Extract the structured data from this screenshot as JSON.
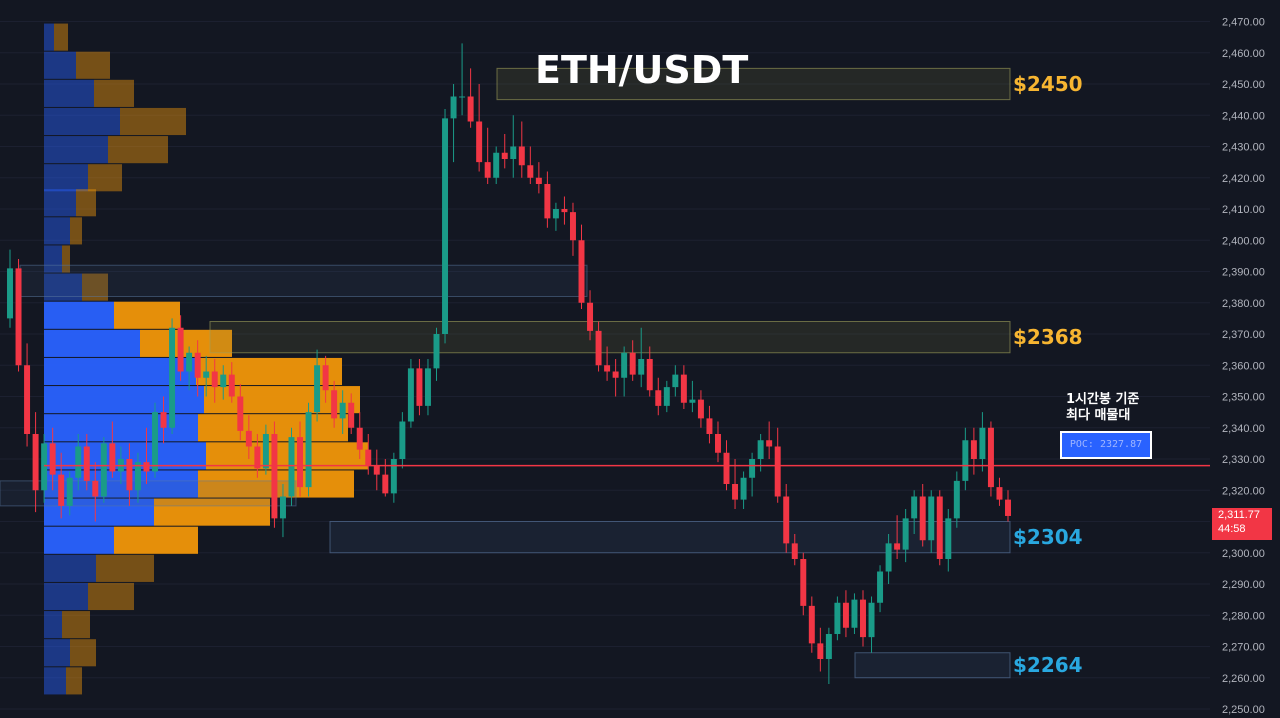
{
  "chart_data": {
    "type": "candlestick",
    "title": "ETH/USDT",
    "ylim": [
      2248,
      2472
    ],
    "y_ticks": [
      "2,250.00",
      "2,260.00",
      "2,270.00",
      "2,280.00",
      "2,290.00",
      "2,300.00",
      "2,310.00",
      "2,320.00",
      "2,330.00",
      "2,340.00",
      "2,350.00",
      "2,360.00",
      "2,370.00",
      "2,380.00",
      "2,390.00",
      "2,400.00",
      "2,410.00",
      "2,420.00",
      "2,430.00",
      "2,440.00",
      "2,450.00",
      "2,460.00",
      "2,470.00"
    ],
    "current_price": "2,311.77",
    "countdown": "44:58",
    "poc_price": 2327.87,
    "poc_label": "POC: 2327.87",
    "poc_note": [
      "1시간봉 기준",
      "최다 매물대"
    ],
    "zones": [
      {
        "label": "$2450",
        "low": 2445,
        "high": 2455,
        "color": "#f7b531"
      },
      {
        "label": "$2368",
        "low": 2364,
        "high": 2374,
        "color": "#f7b531"
      },
      {
        "label": "$2304",
        "low": 2300,
        "high": 2310,
        "color": "#29a8e0"
      },
      {
        "label": "$2264",
        "low": 2260,
        "high": 2268,
        "color": "#29a8e0"
      }
    ],
    "volume_profile": [
      {
        "price": 2465,
        "buy": 10,
        "sell": 14
      },
      {
        "price": 2456,
        "buy": 32,
        "sell": 34
      },
      {
        "price": 2447,
        "buy": 50,
        "sell": 40
      },
      {
        "price": 2438,
        "buy": 76,
        "sell": 66
      },
      {
        "price": 2429,
        "buy": 64,
        "sell": 60
      },
      {
        "price": 2420,
        "buy": 44,
        "sell": 34
      },
      {
        "price": 2412,
        "buy": 32,
        "sell": 20
      },
      {
        "price": 2403,
        "buy": 26,
        "sell": 12
      },
      {
        "price": 2394,
        "buy": 18,
        "sell": 8
      },
      {
        "price": 2385,
        "buy": 38,
        "sell": 26
      },
      {
        "price": 2376,
        "buy": 70,
        "sell": 66
      },
      {
        "price": 2367,
        "buy": 96,
        "sell": 92
      },
      {
        "price": 2358,
        "buy": 152,
        "sell": 146
      },
      {
        "price": 2349,
        "buy": 160,
        "sell": 156
      },
      {
        "price": 2340,
        "buy": 154,
        "sell": 150
      },
      {
        "price": 2331,
        "buy": 162,
        "sell": 162
      },
      {
        "price": 2322,
        "buy": 154,
        "sell": 156
      },
      {
        "price": 2313,
        "buy": 110,
        "sell": 116
      },
      {
        "price": 2304,
        "buy": 70,
        "sell": 84
      },
      {
        "price": 2295,
        "buy": 52,
        "sell": 58
      },
      {
        "price": 2286,
        "buy": 44,
        "sell": 46
      },
      {
        "price": 2277,
        "buy": 18,
        "sell": 28
      },
      {
        "price": 2268,
        "buy": 26,
        "sell": 26
      },
      {
        "price": 2259,
        "buy": 22,
        "sell": 16
      }
    ],
    "candles": [
      [
        2375,
        2397,
        2372,
        2391
      ],
      [
        2391,
        2394,
        2358,
        2360
      ],
      [
        2360,
        2367,
        2334,
        2338
      ],
      [
        2338,
        2345,
        2313,
        2320
      ],
      [
        2320,
        2338,
        2316,
        2335
      ],
      [
        2335,
        2340,
        2320,
        2325
      ],
      [
        2325,
        2332,
        2311,
        2315
      ],
      [
        2315,
        2326,
        2312,
        2324
      ],
      [
        2324,
        2338,
        2320,
        2334
      ],
      [
        2334,
        2338,
        2320,
        2323
      ],
      [
        2323,
        2329,
        2310,
        2318
      ],
      [
        2318,
        2337,
        2316,
        2335
      ],
      [
        2335,
        2342,
        2324,
        2326
      ],
      [
        2326,
        2334,
        2322,
        2330
      ],
      [
        2330,
        2335,
        2315,
        2320
      ],
      [
        2320,
        2332,
        2316,
        2329
      ],
      [
        2329,
        2340,
        2322,
        2326
      ],
      [
        2326,
        2348,
        2324,
        2345
      ],
      [
        2345,
        2350,
        2335,
        2340
      ],
      [
        2340,
        2375,
        2338,
        2372
      ],
      [
        2372,
        2376,
        2355,
        2358
      ],
      [
        2358,
        2366,
        2352,
        2364
      ],
      [
        2364,
        2368,
        2350,
        2356
      ],
      [
        2356,
        2363,
        2350,
        2358
      ],
      [
        2358,
        2362,
        2348,
        2353
      ],
      [
        2353,
        2360,
        2349,
        2357
      ],
      [
        2357,
        2361,
        2348,
        2350
      ],
      [
        2350,
        2354,
        2336,
        2339
      ],
      [
        2339,
        2344,
        2330,
        2334
      ],
      [
        2334,
        2338,
        2324,
        2327
      ],
      [
        2327,
        2341,
        2325,
        2338
      ],
      [
        2338,
        2342,
        2308,
        2311
      ],
      [
        2311,
        2322,
        2305,
        2318
      ],
      [
        2318,
        2340,
        2315,
        2337
      ],
      [
        2337,
        2342,
        2318,
        2321
      ],
      [
        2321,
        2348,
        2318,
        2345
      ],
      [
        2345,
        2365,
        2342,
        2360
      ],
      [
        2360,
        2363,
        2348,
        2352
      ],
      [
        2352,
        2355,
        2340,
        2343
      ],
      [
        2343,
        2352,
        2338,
        2348
      ],
      [
        2348,
        2351,
        2338,
        2340
      ],
      [
        2340,
        2345,
        2330,
        2333
      ],
      [
        2333,
        2338,
        2325,
        2328
      ],
      [
        2328,
        2333,
        2320,
        2325
      ],
      [
        2325,
        2330,
        2318,
        2319
      ],
      [
        2319,
        2332,
        2316,
        2330
      ],
      [
        2330,
        2345,
        2327,
        2342
      ],
      [
        2342,
        2362,
        2340,
        2359
      ],
      [
        2359,
        2362,
        2344,
        2347
      ],
      [
        2347,
        2362,
        2344,
        2359
      ],
      [
        2359,
        2372,
        2355,
        2370
      ],
      [
        2370,
        2442,
        2367,
        2439
      ],
      [
        2439,
        2450,
        2425,
        2446
      ],
      [
        2446,
        2463,
        2440,
        2446
      ],
      [
        2446,
        2455,
        2436,
        2438
      ],
      [
        2438,
        2450,
        2422,
        2425
      ],
      [
        2425,
        2436,
        2418,
        2420
      ],
      [
        2420,
        2430,
        2418,
        2428
      ],
      [
        2428,
        2434,
        2423,
        2426
      ],
      [
        2426,
        2440,
        2420,
        2430
      ],
      [
        2430,
        2438,
        2420,
        2424
      ],
      [
        2424,
        2430,
        2418,
        2420
      ],
      [
        2420,
        2425,
        2415,
        2418
      ],
      [
        2418,
        2422,
        2404,
        2407
      ],
      [
        2407,
        2412,
        2403,
        2410
      ],
      [
        2410,
        2414,
        2405,
        2409
      ],
      [
        2409,
        2412,
        2395,
        2400
      ],
      [
        2400,
        2405,
        2378,
        2380
      ],
      [
        2380,
        2384,
        2368,
        2371
      ],
      [
        2371,
        2374,
        2358,
        2360
      ],
      [
        2360,
        2366,
        2355,
        2358
      ],
      [
        2358,
        2362,
        2350,
        2356
      ],
      [
        2356,
        2366,
        2350,
        2364
      ],
      [
        2364,
        2368,
        2355,
        2357
      ],
      [
        2357,
        2372,
        2353,
        2362
      ],
      [
        2362,
        2366,
        2350,
        2352
      ],
      [
        2352,
        2356,
        2344,
        2347
      ],
      [
        2347,
        2355,
        2345,
        2353
      ],
      [
        2353,
        2360,
        2350,
        2357
      ],
      [
        2357,
        2360,
        2346,
        2348
      ],
      [
        2348,
        2355,
        2345,
        2349
      ],
      [
        2349,
        2352,
        2340,
        2343
      ],
      [
        2343,
        2347,
        2335,
        2338
      ],
      [
        2338,
        2342,
        2329,
        2332
      ],
      [
        2332,
        2336,
        2320,
        2322
      ],
      [
        2322,
        2330,
        2314,
        2317
      ],
      [
        2317,
        2326,
        2314,
        2324
      ],
      [
        2324,
        2332,
        2318,
        2330
      ],
      [
        2330,
        2338,
        2326,
        2336
      ],
      [
        2336,
        2342,
        2330,
        2334
      ],
      [
        2334,
        2340,
        2316,
        2318
      ],
      [
        2318,
        2322,
        2300,
        2303
      ],
      [
        2303,
        2306,
        2296,
        2298
      ],
      [
        2298,
        2300,
        2280,
        2283
      ],
      [
        2283,
        2286,
        2268,
        2271
      ],
      [
        2271,
        2276,
        2262,
        2266
      ],
      [
        2266,
        2276,
        2258,
        2274
      ],
      [
        2274,
        2286,
        2272,
        2284
      ],
      [
        2284,
        2288,
        2273,
        2276
      ],
      [
        2276,
        2287,
        2274,
        2285
      ],
      [
        2285,
        2288,
        2270,
        2273
      ],
      [
        2273,
        2286,
        2268,
        2284
      ],
      [
        2284,
        2296,
        2281,
        2294
      ],
      [
        2294,
        2306,
        2290,
        2303
      ],
      [
        2303,
        2312,
        2298,
        2301
      ],
      [
        2301,
        2314,
        2297,
        2311
      ],
      [
        2311,
        2320,
        2306,
        2318
      ],
      [
        2318,
        2322,
        2302,
        2304
      ],
      [
        2304,
        2320,
        2300,
        2318
      ],
      [
        2318,
        2320,
        2296,
        2298
      ],
      [
        2298,
        2314,
        2294,
        2311
      ],
      [
        2311,
        2326,
        2308,
        2323
      ],
      [
        2323,
        2340,
        2320,
        2336
      ],
      [
        2336,
        2340,
        2325,
        2330
      ],
      [
        2330,
        2345,
        2326,
        2340
      ],
      [
        2340,
        2342,
        2318,
        2321
      ],
      [
        2321,
        2324,
        2315,
        2317
      ],
      [
        2317,
        2320,
        2310,
        2311.77
      ]
    ]
  },
  "colors": {
    "background": "#131722",
    "up": "#1a9b88",
    "down": "#f23645",
    "profile_buy": "#2962ff",
    "profile_sell": "#f0960a",
    "poc_line": "#f23645",
    "axis_text": "#b2b5be"
  }
}
